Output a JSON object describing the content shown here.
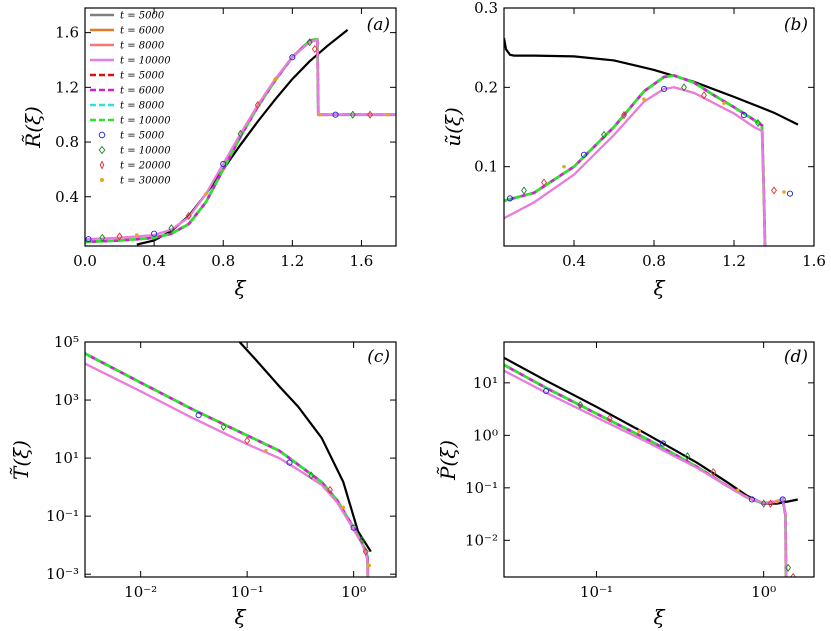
{
  "chart_data": [
    {
      "id": "a",
      "type": "line",
      "panel_label": "(a)",
      "xlabel": "ξ",
      "ylabel": "R̃(ξ)",
      "xscale": "linear",
      "yscale": "linear",
      "xlim": [
        0,
        1.8
      ],
      "ylim": [
        0.04,
        1.78
      ],
      "xticks": [
        0,
        0.4,
        0.8,
        1.2,
        1.6
      ],
      "xtick_labels": [
        "0.0",
        "0.4",
        "0.8",
        "1.2",
        "1.6"
      ],
      "yticks": [
        0.4,
        0.8,
        1.2,
        1.6
      ],
      "ytick_labels": [
        "0.4",
        "0.8",
        "1.2",
        "1.6"
      ],
      "legend": {
        "position": "top-left",
        "entries": [
          {
            "label": "t = 5000",
            "style": "solid",
            "color": "#808080"
          },
          {
            "label": "t = 6000",
            "style": "solid",
            "color": "#e07b2a"
          },
          {
            "label": "t = 8000",
            "style": "solid",
            "color": "#f07878"
          },
          {
            "label": "t = 10000",
            "style": "solid",
            "color": "#e87be8"
          },
          {
            "label": "t = 5000",
            "style": "dashed",
            "color": "#e01010"
          },
          {
            "label": "t = 6000",
            "style": "dashed",
            "color": "#d020d0"
          },
          {
            "label": "t = 8000",
            "style": "dashed",
            "color": "#30e0e0"
          },
          {
            "label": "t = 10000",
            "style": "dashed",
            "color": "#30e030"
          },
          {
            "label": "t = 5000",
            "style": "circle",
            "color": "#2020d0"
          },
          {
            "label": "t = 10000",
            "style": "diamond",
            "color": "#208020"
          },
          {
            "label": "t = 20000",
            "style": "thin-diamond",
            "color": "#e03030"
          },
          {
            "label": "t = 30000",
            "style": "point",
            "color": "#f0a020"
          }
        ]
      },
      "series": [
        {
          "name": "reference",
          "style": "solid",
          "color": "#000000",
          "x": [
            0.3,
            0.4,
            0.5,
            0.6,
            0.7,
            0.8,
            0.9,
            1.0,
            1.1,
            1.2,
            1.3,
            1.4,
            1.52
          ],
          "y": [
            0.05,
            0.08,
            0.15,
            0.26,
            0.42,
            0.6,
            0.78,
            0.95,
            1.11,
            1.26,
            1.39,
            1.5,
            1.62
          ]
        },
        {
          "name": "dashed group",
          "style": "dashed",
          "color": "#30e030",
          "x": [
            0,
            0.2,
            0.4,
            0.5,
            0.6,
            0.7,
            0.8,
            0.9,
            1.0,
            1.1,
            1.2,
            1.3,
            1.33,
            1.345,
            1.35,
            1.5,
            1.8
          ],
          "y": [
            0.07,
            0.08,
            0.1,
            0.13,
            0.2,
            0.36,
            0.6,
            0.84,
            1.06,
            1.25,
            1.42,
            1.54,
            1.55,
            1.55,
            1.0,
            1.0,
            1.0
          ]
        },
        {
          "name": "solid group",
          "style": "solid",
          "color": "#e87be8",
          "x": [
            0,
            0.2,
            0.4,
            0.5,
            0.6,
            0.7,
            0.8,
            0.9,
            1.0,
            1.1,
            1.2,
            1.3,
            1.33,
            1.345,
            1.35,
            1.5,
            1.8
          ],
          "y": [
            0.09,
            0.1,
            0.12,
            0.16,
            0.25,
            0.42,
            0.64,
            0.86,
            1.07,
            1.26,
            1.42,
            1.53,
            1.54,
            1.55,
            1.0,
            1.0,
            1.0
          ]
        },
        {
          "name": "markers",
          "style": "markers",
          "color": "#2020d0",
          "x": [
            0.02,
            0.1,
            0.2,
            0.3,
            0.4,
            0.5,
            0.6,
            0.7,
            0.8,
            0.9,
            1.0,
            1.1,
            1.2,
            1.3,
            1.33,
            1.36,
            1.45,
            1.55,
            1.65,
            1.75
          ],
          "y": [
            0.09,
            0.1,
            0.11,
            0.12,
            0.13,
            0.17,
            0.26,
            0.42,
            0.64,
            0.86,
            1.07,
            1.26,
            1.42,
            1.53,
            1.48,
            1.0,
            1.0,
            1.0,
            1.0,
            1.0
          ]
        }
      ]
    },
    {
      "id": "b",
      "type": "line",
      "panel_label": "(b)",
      "xlabel": "ξ",
      "ylabel": "ũ(ξ)",
      "xscale": "linear",
      "yscale": "linear",
      "xlim": [
        0.05,
        1.6
      ],
      "ylim": [
        0.0,
        0.3
      ],
      "xticks": [
        0.4,
        0.8,
        1.2,
        1.6
      ],
      "xtick_labels": [
        "0.4",
        "0.8",
        "1.2",
        "1.6"
      ],
      "yticks": [
        0.1,
        0.2,
        0.3
      ],
      "ytick_labels": [
        "0.1",
        "0.2",
        "0.3"
      ],
      "series": [
        {
          "name": "reference",
          "style": "solid",
          "color": "#000000",
          "x": [
            0.05,
            0.06,
            0.08,
            0.1,
            0.2,
            0.4,
            0.6,
            0.8,
            1.0,
            1.2,
            1.4,
            1.52
          ],
          "y": [
            0.262,
            0.248,
            0.241,
            0.24,
            0.24,
            0.239,
            0.234,
            0.222,
            0.207,
            0.188,
            0.168,
            0.153
          ]
        },
        {
          "name": "dashed group",
          "style": "dashed",
          "color": "#30e030",
          "x": [
            0.05,
            0.2,
            0.4,
            0.6,
            0.75,
            0.85,
            0.9,
            1.0,
            1.1,
            1.2,
            1.3,
            1.34,
            1.35,
            1.355
          ],
          "y": [
            0.057,
            0.067,
            0.1,
            0.15,
            0.195,
            0.213,
            0.215,
            0.206,
            0.19,
            0.175,
            0.159,
            0.152,
            0.06,
            0.0
          ]
        },
        {
          "name": "solid group",
          "style": "solid",
          "color": "#e87be8",
          "x": [
            0.05,
            0.2,
            0.4,
            0.6,
            0.75,
            0.85,
            0.9,
            1.0,
            1.1,
            1.2,
            1.3,
            1.34,
            1.35,
            1.355
          ],
          "y": [
            0.035,
            0.055,
            0.09,
            0.14,
            0.182,
            0.198,
            0.2,
            0.193,
            0.18,
            0.167,
            0.15,
            0.145,
            0.06,
            0.0
          ]
        },
        {
          "name": "markers",
          "style": "markers",
          "color": "#2020d0",
          "x": [
            0.08,
            0.15,
            0.25,
            0.35,
            0.45,
            0.55,
            0.65,
            0.75,
            0.85,
            0.95,
            1.05,
            1.15,
            1.25,
            1.32,
            1.4,
            1.45,
            1.48
          ],
          "y": [
            0.06,
            0.07,
            0.08,
            0.1,
            0.115,
            0.14,
            0.165,
            0.185,
            0.198,
            0.2,
            0.19,
            0.18,
            0.165,
            0.155,
            0.07,
            0.068,
            0.066
          ]
        }
      ]
    },
    {
      "id": "c",
      "type": "line",
      "panel_label": "(c)",
      "xlabel": "ξ",
      "ylabel": "T̃(ξ)",
      "xscale": "log",
      "yscale": "log",
      "xlim": [
        0.003,
        2.5
      ],
      "ylim": [
        0.0008,
        100000
      ],
      "xticks": [
        0.01,
        0.1,
        1
      ],
      "xtick_labels": [
        "10⁻²",
        "10⁻¹",
        "10⁰"
      ],
      "yticks": [
        0.001,
        0.1,
        10,
        1000,
        100000
      ],
      "ytick_labels": [
        "10⁻³",
        "10⁻¹",
        "10¹",
        "10³",
        "10⁵"
      ],
      "series": [
        {
          "name": "reference",
          "style": "solid",
          "color": "#000000",
          "x": [
            0.085,
            0.12,
            0.2,
            0.3,
            0.5,
            0.8,
            1.1,
            1.45
          ],
          "y": [
            100000,
            25000,
            3000,
            600,
            50,
            1.5,
            0.03,
            0.006
          ]
        },
        {
          "name": "dashed group",
          "style": "dashed",
          "color": "#30e030",
          "x": [
            0.003,
            0.01,
            0.03,
            0.1,
            0.2,
            0.3,
            0.5,
            0.7,
            1.0,
            1.2,
            1.3,
            1.35,
            1.36
          ],
          "y": [
            40000,
            4000,
            500,
            60,
            18,
            6,
            1.5,
            0.35,
            0.04,
            0.012,
            0.006,
            0.004,
            0.0008
          ]
        },
        {
          "name": "solid group",
          "style": "solid",
          "color": "#e87be8",
          "x": [
            0.003,
            0.01,
            0.03,
            0.1,
            0.2,
            0.3,
            0.5,
            0.7,
            1.0,
            1.2,
            1.3,
            1.35,
            1.36
          ],
          "y": [
            18000,
            2000,
            250,
            30,
            10,
            4,
            1.2,
            0.3,
            0.035,
            0.011,
            0.005,
            0.003,
            0.0008
          ]
        },
        {
          "name": "markers",
          "style": "markers",
          "color": "#f0a020",
          "x": [
            0.035,
            0.06,
            0.1,
            0.15,
            0.25,
            0.4,
            0.6,
            0.8,
            1.0,
            1.2,
            1.3,
            1.4
          ],
          "y": [
            300,
            120,
            40,
            18,
            7,
            2.5,
            0.8,
            0.2,
            0.04,
            0.015,
            0.006,
            0.002
          ]
        }
      ]
    },
    {
      "id": "d",
      "type": "line",
      "panel_label": "(d)",
      "xlabel": "ξ",
      "ylabel": "P̃(ξ)",
      "xscale": "log",
      "yscale": "log",
      "xlim": [
        0.028,
        2.0
      ],
      "ylim": [
        0.002,
        60
      ],
      "xticks": [
        0.1,
        1
      ],
      "xtick_labels": [
        "10⁻¹",
        "10⁰"
      ],
      "yticks": [
        0.01,
        0.1,
        1,
        10
      ],
      "ytick_labels": [
        "10⁻²",
        "10⁻¹",
        "10⁰",
        "10¹"
      ],
      "series": [
        {
          "name": "reference",
          "style": "solid",
          "color": "#000000",
          "x": [
            0.028,
            0.05,
            0.1,
            0.2,
            0.4,
            0.6,
            0.8,
            1.0,
            1.2,
            1.4,
            1.6
          ],
          "y": [
            30,
            11,
            3.5,
            1.05,
            0.3,
            0.13,
            0.07,
            0.05,
            0.05,
            0.055,
            0.06
          ]
        },
        {
          "name": "dashed group",
          "style": "dashed",
          "color": "#30e030",
          "x": [
            0.028,
            0.05,
            0.1,
            0.2,
            0.4,
            0.6,
            0.8,
            1.0,
            1.2,
            1.3,
            1.35,
            1.36
          ],
          "y": [
            22,
            8,
            2.6,
            0.85,
            0.25,
            0.11,
            0.065,
            0.05,
            0.055,
            0.06,
            0.03,
            0.002
          ]
        },
        {
          "name": "solid group",
          "style": "solid",
          "color": "#e87be8",
          "x": [
            0.028,
            0.05,
            0.1,
            0.2,
            0.4,
            0.6,
            0.8,
            1.0,
            1.2,
            1.3,
            1.35,
            1.36
          ],
          "y": [
            17,
            6.5,
            2.2,
            0.75,
            0.24,
            0.11,
            0.065,
            0.052,
            0.055,
            0.06,
            0.03,
            0.002
          ]
        },
        {
          "name": "markers",
          "style": "markers",
          "color": "#f0a020",
          "x": [
            0.05,
            0.08,
            0.12,
            0.18,
            0.25,
            0.35,
            0.5,
            0.7,
            0.85,
            1.0,
            1.1,
            1.2,
            1.3,
            1.4,
            1.5
          ],
          "y": [
            7,
            3.8,
            2.1,
            1.2,
            0.7,
            0.4,
            0.2,
            0.09,
            0.06,
            0.05,
            0.05,
            0.055,
            0.06,
            0.003,
            0.002
          ]
        }
      ]
    }
  ]
}
